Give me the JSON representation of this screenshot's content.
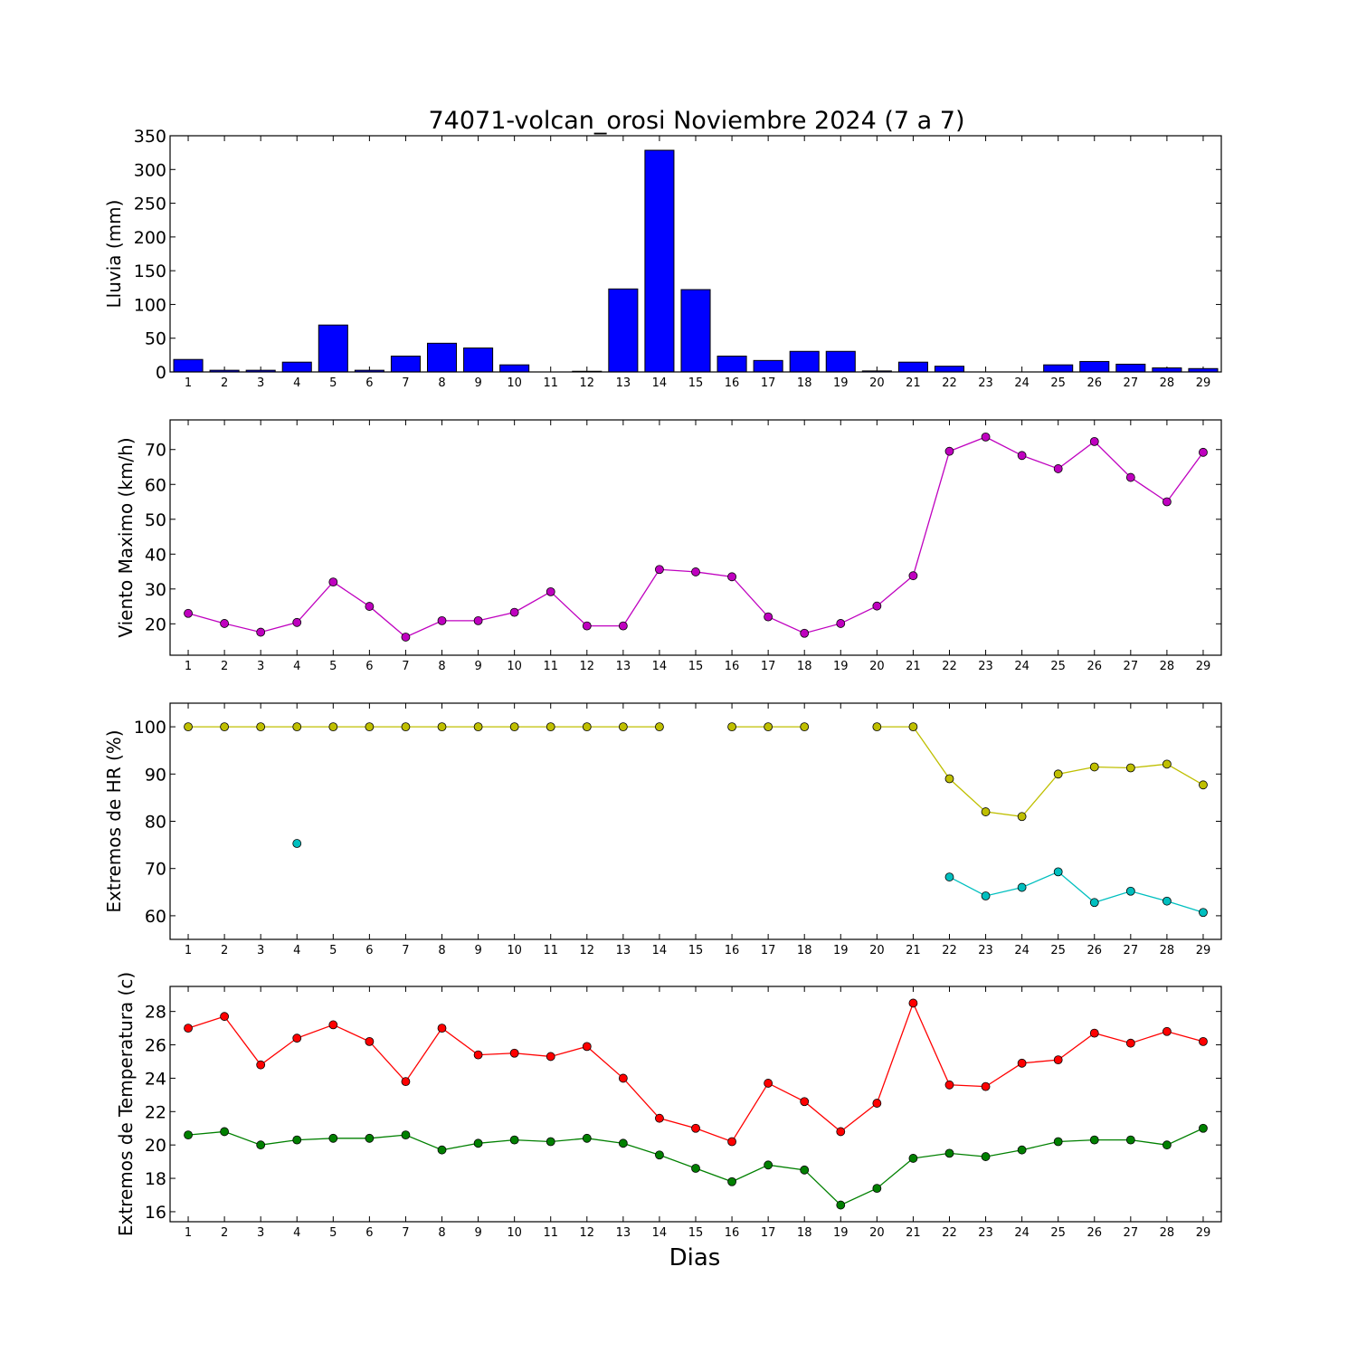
{
  "chart_data": {
    "title": "74071-volcan_orosi Noviembre 2024  (7 a 7)",
    "xlabel": "Dias",
    "x": [
      1,
      2,
      3,
      4,
      5,
      6,
      7,
      8,
      9,
      10,
      11,
      12,
      13,
      14,
      15,
      16,
      17,
      18,
      19,
      20,
      21,
      22,
      23,
      24,
      25,
      26,
      27,
      28,
      29
    ],
    "x_tick_labels": [
      "1",
      "2",
      "3",
      "4",
      "5",
      "6",
      "7",
      "8",
      "9",
      "10",
      "11",
      "12",
      "13",
      "14",
      "15",
      "16",
      "17",
      "18",
      "19",
      "20",
      "21",
      "22",
      "23",
      "24",
      "25",
      "26",
      "27",
      "28",
      "29"
    ],
    "panels": [
      {
        "type": "bar",
        "ylabel": "Lluvia (mm)",
        "ylim": [
          0,
          350
        ],
        "yticks": [
          0,
          50,
          100,
          150,
          200,
          250,
          300,
          350
        ],
        "series": [
          {
            "color": "#0000ff",
            "values": [
              18.5,
              2.5,
              2.5,
              14.5,
              69.5,
              2.5,
              23.5,
              42.5,
              35.5,
              10.5,
              0.0,
              1.0,
              123.0,
              328.5,
              122.0,
              23.5,
              17.0,
              30.5,
              30.5,
              1.5,
              14.5,
              8.5,
              0.0,
              0.0,
              10.5,
              15.5,
              11.5,
              6.0,
              5.0
            ]
          }
        ]
      },
      {
        "type": "line",
        "ylabel": "Viento Maximo (km/h)",
        "ylim": [
          11,
          78.5
        ],
        "yticks": [
          20,
          30,
          40,
          50,
          60,
          70
        ],
        "series": [
          {
            "color": "#bf00bf",
            "values": [
              23.0,
              20.1,
              17.6,
              20.4,
              32.0,
              25.0,
              16.2,
              20.9,
              20.9,
              23.3,
              29.2,
              19.4,
              19.4,
              35.6,
              34.9,
              33.5,
              22.0,
              17.3,
              20.1,
              25.1,
              33.8,
              69.5,
              73.6,
              68.3,
              64.5,
              72.3,
              62.0,
              55.0,
              69.2
            ]
          }
        ]
      },
      {
        "type": "line",
        "ylabel": "Extremos de HR (%)",
        "ylim": [
          55,
          105
        ],
        "yticks": [
          60,
          70,
          80,
          90,
          100
        ],
        "series": [
          {
            "color": "#bfbf00",
            "values": [
              100,
              100,
              100,
              100,
              100,
              100,
              100,
              100,
              100,
              100,
              100,
              100,
              100,
              100,
              null,
              100,
              100,
              100,
              null,
              100,
              100,
              89.0,
              82.0,
              81.0,
              90.0,
              91.5,
              91.3,
              92.1,
              87.7
            ]
          },
          {
            "color": "#00bfbf",
            "values": [
              null,
              null,
              null,
              75.3,
              null,
              null,
              null,
              null,
              null,
              null,
              null,
              null,
              null,
              null,
              null,
              null,
              null,
              null,
              null,
              null,
              null,
              68.2,
              64.2,
              66.0,
              69.3,
              62.8,
              65.2,
              63.1,
              60.7
            ]
          }
        ]
      },
      {
        "type": "line",
        "ylabel": "Extremos de Temperatura (c)",
        "ylim": [
          15.4,
          29.5
        ],
        "yticks": [
          16,
          18,
          20,
          22,
          24,
          26,
          28
        ],
        "series": [
          {
            "color": "#ff0000",
            "values": [
              27.0,
              27.7,
              24.8,
              26.4,
              27.2,
              26.2,
              23.8,
              27.0,
              25.4,
              25.5,
              25.3,
              25.9,
              24.0,
              21.6,
              21.0,
              20.2,
              23.7,
              22.6,
              20.8,
              22.5,
              28.5,
              23.6,
              23.5,
              24.9,
              25.1,
              26.7,
              26.1,
              26.8,
              26.2
            ]
          },
          {
            "color": "#008000",
            "values": [
              20.6,
              20.8,
              20.0,
              20.3,
              20.4,
              20.4,
              20.6,
              19.7,
              20.1,
              20.3,
              20.2,
              20.4,
              20.1,
              19.4,
              18.6,
              17.8,
              18.8,
              18.5,
              16.4,
              17.4,
              19.2,
              19.5,
              19.3,
              19.7,
              20.2,
              20.3,
              20.3,
              20.0,
              21.0
            ]
          }
        ]
      }
    ]
  }
}
